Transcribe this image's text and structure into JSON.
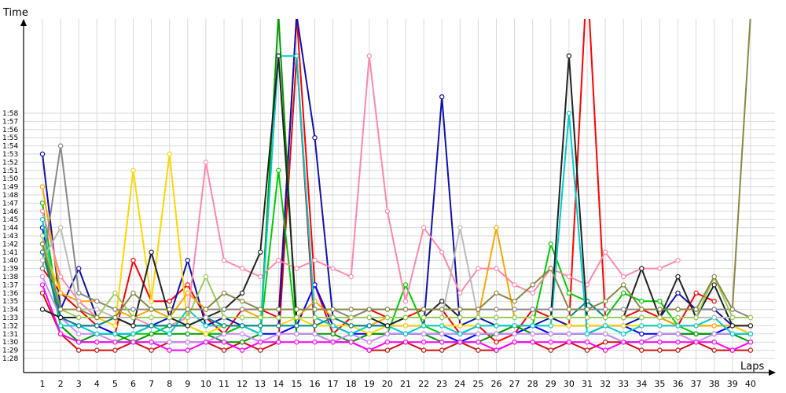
{
  "chart_data": {
    "type": "line",
    "title": "",
    "xlabel": "Laps",
    "ylabel": "Time",
    "xlim": [
      1,
      40
    ],
    "ylim_seconds": [
      88,
      119
    ],
    "grid": true,
    "legend": "none",
    "x": [
      1,
      2,
      3,
      4,
      5,
      6,
      7,
      8,
      9,
      10,
      11,
      12,
      13,
      14,
      15,
      16,
      17,
      18,
      19,
      20,
      21,
      22,
      23,
      24,
      25,
      26,
      27,
      28,
      29,
      30,
      31,
      32,
      33,
      34,
      35,
      36,
      37,
      38,
      39,
      40
    ],
    "x_tick_labels": [
      "1",
      "2",
      "3",
      "4",
      "5",
      "6",
      "7",
      "8",
      "9",
      "10",
      "11",
      "12",
      "13",
      "14",
      "15",
      "16",
      "17",
      "18",
      "19",
      "20",
      "21",
      "22",
      "23",
      "24",
      "25",
      "26",
      "27",
      "28",
      "29",
      "30",
      "31",
      "32",
      "33",
      "34",
      "35",
      "36",
      "37",
      "38",
      "39",
      "40"
    ],
    "y_tick_labels": [
      "1:28",
      "1:29",
      "1:30",
      "1:31",
      "1:32",
      "1:33",
      "1:34",
      "1:35",
      "1:36",
      "1:37",
      "1:38",
      "1:39",
      "1:40",
      "1:41",
      "1:42",
      "1:43",
      "1:44",
      "1:45",
      "1:46",
      "1:47",
      "1:48",
      "1:49",
      "1:50",
      "1:51",
      "1:52",
      "1:53",
      "1:54",
      "1:55",
      "1:56",
      "1:57",
      "1:58"
    ],
    "y_unit": "seconds",
    "series": [
      {
        "color": "#ff0000",
        "values": [
          99,
          96,
          94,
          92,
          91,
          100,
          95,
          95,
          97,
          93,
          91,
          94,
          94,
          93,
          130,
          97,
          91,
          93,
          94,
          93,
          93,
          94,
          94,
          91,
          92,
          90,
          91,
          94,
          93,
          92,
          135,
          93,
          93,
          94,
          93,
          92,
          96,
          95,
          null,
          null
        ]
      },
      {
        "color": "#d01010",
        "values": [
          96,
          91,
          89,
          89,
          89,
          90,
          89,
          90,
          90,
          90,
          89,
          90,
          89,
          90,
          125,
          91,
          90,
          90,
          89,
          89,
          90,
          89,
          89,
          90,
          89,
          89,
          90,
          90,
          89,
          90,
          89,
          90,
          90,
          89,
          89,
          89,
          90,
          89,
          89,
          89
        ]
      },
      {
        "color": "#0000ff",
        "values": [
          104,
          93,
          92,
          92,
          91,
          91,
          92,
          92,
          92,
          91,
          91,
          92,
          91,
          91,
          92,
          97,
          92,
          91,
          91,
          91,
          91,
          91,
          91,
          90,
          91,
          91,
          91,
          92,
          91,
          91,
          91,
          92,
          92,
          91,
          91,
          91,
          91,
          91,
          92,
          91
        ]
      },
      {
        "color": "#1010b0",
        "values": [
          113,
          94,
          99,
          93,
          93,
          92,
          92,
          93,
          100,
          92,
          93,
          92,
          92,
          92,
          130,
          115,
          93,
          92,
          92,
          92,
          92,
          92,
          120,
          92,
          93,
          92,
          92,
          92,
          93,
          92,
          92,
          92,
          92,
          93,
          93,
          96,
          94,
          94,
          92,
          92
        ]
      },
      {
        "color": "#00cc00",
        "values": [
          107,
          92,
          90,
          90,
          90,
          91,
          91,
          92,
          92,
          91,
          91,
          92,
          91,
          111,
          91,
          91,
          90,
          90,
          91,
          91,
          97,
          92,
          91,
          91,
          91,
          91,
          92,
          92,
          102,
          96,
          95,
          93,
          96,
          95,
          95,
          92,
          91,
          91,
          91,
          91
        ]
      },
      {
        "color": "#009900",
        "values": [
          102,
          92,
          90,
          91,
          91,
          90,
          91,
          91,
          91,
          91,
          90,
          90,
          91,
          130,
          91,
          91,
          91,
          90,
          91,
          91,
          91,
          91,
          90,
          90,
          90,
          91,
          92,
          91,
          91,
          91,
          91,
          91,
          90,
          90,
          91,
          91,
          91,
          91,
          91,
          90
        ]
      },
      {
        "color": "#ffd700",
        "values": [
          102,
          96,
          95,
          93,
          92,
          111,
          95,
          113,
          92,
          91,
          92,
          92,
          92,
          92,
          93,
          92,
          92,
          92,
          91,
          92,
          92,
          92,
          92,
          92,
          92,
          92,
          92,
          92,
          92,
          92,
          92,
          92,
          92,
          92,
          92,
          92,
          92,
          92,
          92,
          91
        ]
      },
      {
        "color": "#ffa500",
        "values": [
          109,
          96,
          95,
          95,
          94,
          93,
          94,
          93,
          96,
          94,
          94,
          94,
          93,
          93,
          93,
          95,
          93,
          92,
          92,
          93,
          93,
          93,
          93,
          93,
          93,
          104,
          93,
          93,
          93,
          93,
          93,
          93,
          93,
          93,
          93,
          92,
          92,
          92,
          92,
          92
        ]
      },
      {
        "color": "#ff88aa",
        "values": [
          106,
          98,
          95,
          93,
          93,
          93,
          92,
          92,
          93,
          112,
          100,
          99,
          98,
          100,
          99,
          100,
          99,
          98,
          125,
          106,
          95,
          104,
          101,
          96,
          99,
          99,
          97,
          96,
          99,
          98,
          97,
          101,
          98,
          99,
          99,
          100,
          null,
          null,
          null,
          null
        ]
      },
      {
        "color": "#cc88ff",
        "values": [
          98,
          93,
          91,
          91,
          90,
          90,
          90,
          90,
          90,
          90,
          91,
          91,
          90,
          91,
          91,
          91,
          90,
          91,
          90,
          91,
          91,
          91,
          91,
          91,
          91,
          91,
          91,
          91,
          91,
          91,
          91,
          91,
          90,
          90,
          91,
          91,
          90,
          91,
          91,
          91
        ]
      },
      {
        "color": "#ff00ff",
        "values": [
          97,
          91,
          90,
          90,
          90,
          90,
          90,
          89,
          89,
          90,
          90,
          89,
          90,
          90,
          90,
          90,
          90,
          90,
          89,
          90,
          90,
          90,
          90,
          90,
          90,
          89,
          90,
          90,
          90,
          90,
          90,
          89,
          90,
          90,
          90,
          90,
          90,
          90,
          89,
          90
        ]
      },
      {
        "color": "#00cccc",
        "values": [
          105,
          92,
          92,
          91,
          91,
          91,
          92,
          91,
          94,
          92,
          92,
          92,
          91,
          125,
          125,
          93,
          92,
          91,
          92,
          92,
          91,
          92,
          92,
          91,
          92,
          92,
          92,
          92,
          92,
          118,
          91,
          92,
          91,
          92,
          92,
          92,
          92,
          93,
          91,
          91
        ]
      },
      {
        "color": "#008888",
        "values": [
          101,
          93,
          92,
          92,
          93,
          92,
          92,
          92,
          92,
          93,
          92,
          92,
          92,
          92,
          92,
          92,
          93,
          92,
          92,
          92,
          93,
          93,
          93,
          93,
          93,
          93,
          93,
          93,
          93,
          93,
          95,
          93,
          93,
          93,
          93,
          93,
          93,
          93,
          93,
          null
        ]
      },
      {
        "color": "#222222",
        "values": [
          94,
          93,
          93,
          93,
          93,
          92,
          101,
          93,
          92,
          93,
          94,
          96,
          101,
          125,
          93,
          93,
          93,
          93,
          93,
          92,
          93,
          93,
          95,
          93,
          93,
          93,
          93,
          93,
          93,
          125,
          93,
          93,
          93,
          99,
          93,
          98,
          93,
          97,
          92,
          92
        ]
      },
      {
        "color": "#888888",
        "values": [
          99,
          114,
          96,
          95,
          94,
          94,
          94,
          94,
          94,
          94,
          94,
          94,
          94,
          94,
          94,
          94,
          94,
          93,
          94,
          94,
          94,
          94,
          94,
          94,
          94,
          94,
          94,
          94,
          94,
          94,
          94,
          94,
          94,
          94,
          94,
          94,
          94,
          94,
          94,
          93
        ]
      },
      {
        "color": "#bbbbbb",
        "values": [
          100,
          104,
          94,
          94,
          93,
          93,
          93,
          93,
          93,
          93,
          93,
          93,
          93,
          93,
          93,
          93,
          93,
          93,
          93,
          93,
          93,
          93,
          93,
          104,
          93,
          93,
          93,
          93,
          93,
          93,
          93,
          93,
          93,
          93,
          93,
          93,
          93,
          93,
          93,
          93
        ]
      },
      {
        "color": "#99cc55",
        "values": [
          103,
          94,
          93,
          93,
          96,
          93,
          93,
          93,
          93,
          98,
          93,
          93,
          93,
          93,
          93,
          93,
          93,
          93,
          93,
          93,
          93,
          93,
          93,
          93,
          93,
          93,
          93,
          93,
          93,
          93,
          93,
          93,
          93,
          93,
          93,
          93,
          93,
          98,
          93,
          93
        ]
      },
      {
        "color": "#888844",
        "values": [
          102,
          94,
          94,
          93,
          93,
          96,
          94,
          94,
          94,
          94,
          96,
          95,
          94,
          94,
          94,
          94,
          94,
          94,
          94,
          94,
          94,
          94,
          94,
          94,
          94,
          96,
          95,
          97,
          99,
          94,
          94,
          95,
          97,
          94,
          94,
          94,
          94,
          98,
          94,
          130
        ]
      }
    ]
  }
}
